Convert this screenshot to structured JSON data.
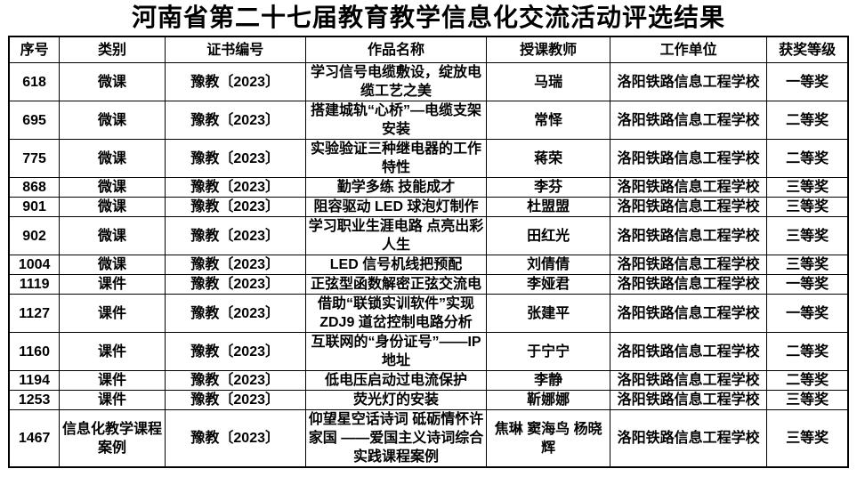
{
  "page": {
    "background_color": "#ffffff",
    "text_color": "#000000",
    "border_color": "#000000"
  },
  "title": "河南省第二十七届教育教学信息化交流活动评选结果",
  "table": {
    "columns": [
      {
        "key": "no",
        "label": "序号"
      },
      {
        "key": "category",
        "label": "类别"
      },
      {
        "key": "cert",
        "label": "证书编号"
      },
      {
        "key": "work",
        "label": "作品名称"
      },
      {
        "key": "teacher",
        "label": "授课教师"
      },
      {
        "key": "unit",
        "label": "工作单位"
      },
      {
        "key": "award",
        "label": "获奖等级"
      }
    ],
    "rows": [
      {
        "no": "618",
        "category": "微课",
        "cert": "豫教〔2023〕",
        "work": "学习信号电缆敷设，绽放电缆工艺之美",
        "teacher": "马瑞",
        "unit": "洛阳铁路信息工程学校",
        "award": "一等奖"
      },
      {
        "no": "695",
        "category": "微课",
        "cert": "豫教〔2023〕",
        "work": "搭建城轨“心桥”—电缆支架安装",
        "teacher": "常怿",
        "unit": "洛阳铁路信息工程学校",
        "award": "二等奖"
      },
      {
        "no": "775",
        "category": "微课",
        "cert": "豫教〔2023〕",
        "work": "实验验证三种继电器的工作特性",
        "teacher": "蒋荣",
        "unit": "洛阳铁路信息工程学校",
        "award": "二等奖"
      },
      {
        "no": "868",
        "category": "微课",
        "cert": "豫教〔2023〕",
        "work": "勤学多练 技能成才",
        "teacher": "李芬",
        "unit": "洛阳铁路信息工程学校",
        "award": "三等奖"
      },
      {
        "no": "901",
        "category": "微课",
        "cert": "豫教〔2023〕",
        "work": "阻容驱动 LED 球泡灯制作",
        "teacher": "杜盟盟",
        "unit": "洛阳铁路信息工程学校",
        "award": "三等奖"
      },
      {
        "no": "902",
        "category": "微课",
        "cert": "豫教〔2023〕",
        "work": "学习职业生涯电路 点亮出彩人生",
        "teacher": "田红光",
        "unit": "洛阳铁路信息工程学校",
        "award": "三等奖"
      },
      {
        "no": "1004",
        "category": "微课",
        "cert": "豫教〔2023〕",
        "work": "LED 信号机线把预配",
        "teacher": "刘倩倩",
        "unit": "洛阳铁路信息工程学校",
        "award": "三等奖"
      },
      {
        "no": "1119",
        "category": "课件",
        "cert": "豫教〔2023〕",
        "work": "正弦型函数解密正弦交流电",
        "teacher": "李娅君",
        "unit": "洛阳铁路信息工程学校",
        "award": "一等奖"
      },
      {
        "no": "1127",
        "category": "课件",
        "cert": "豫教〔2023〕",
        "work": "借助“联锁实训软件”实现 ZDJ9 道岔控制电路分析",
        "teacher": "张建平",
        "unit": "洛阳铁路信息工程学校",
        "award": "一等奖"
      },
      {
        "no": "1160",
        "category": "课件",
        "cert": "豫教〔2023〕",
        "work": "互联网的“身份证号”——IP 地址",
        "teacher": "于宁宁",
        "unit": "洛阳铁路信息工程学校",
        "award": "二等奖"
      },
      {
        "no": "1194",
        "category": "课件",
        "cert": "豫教〔2023〕",
        "work": "低电压启动过电流保护",
        "teacher": "李静",
        "unit": "洛阳铁路信息工程学校",
        "award": "二等奖"
      },
      {
        "no": "1253",
        "category": "课件",
        "cert": "豫教〔2023〕",
        "work": "荧光灯的安装",
        "teacher": "靳娜娜",
        "unit": "洛阳铁路信息工程学校",
        "award": "三等奖"
      },
      {
        "no": "1467",
        "category": "信息化教学课程案例",
        "cert": "豫教〔2023〕",
        "work": "仰望星空话诗词 砥砺情怀许家国 ——爱国主义诗词综合实践课程案例",
        "teacher": "焦琳 窦海鸟 杨晓辉",
        "unit": "洛阳铁路信息工程学校",
        "award": "三等奖"
      }
    ]
  }
}
